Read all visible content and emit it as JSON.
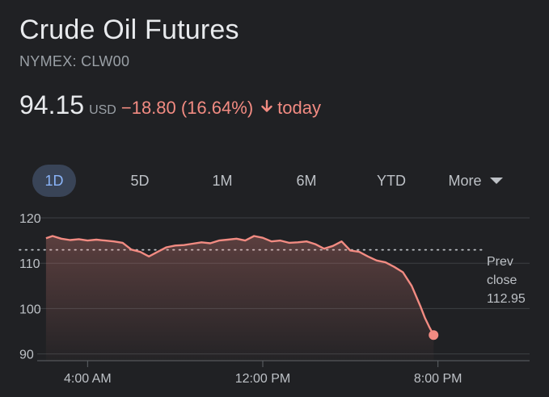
{
  "header": {
    "title": "Crude Oil Futures",
    "subtitle": "NYMEX: CLW00"
  },
  "quote": {
    "price": "94.15",
    "currency": "USD",
    "change": "−18.80 (16.64%)",
    "period": "today",
    "direction_icon": "arrow-down-icon",
    "change_color": "#f28b82"
  },
  "range_tabs": {
    "items": [
      "1D",
      "5D",
      "1M",
      "6M",
      "YTD"
    ],
    "more_label": "More",
    "active": "1D"
  },
  "prev_close": {
    "line1": "Prev",
    "line2": "close",
    "value": "112.95"
  },
  "chart_data": {
    "type": "line",
    "x_ticks": [
      "4:00 AM",
      "12:00 PM",
      "8:00 PM"
    ],
    "y_ticks": [
      "120",
      "110",
      "100",
      "90"
    ],
    "ylim": [
      88.5,
      120
    ],
    "x_range_hours": [
      0,
      24
    ],
    "x_tick_hours": [
      4,
      12,
      20
    ],
    "baseline": 112.95,
    "line_color": "#f28b82",
    "series": [
      {
        "x": [
          2.1,
          2.4,
          2.8,
          3.2,
          3.6,
          4.0,
          4.4,
          4.8,
          5.2,
          5.6,
          6.0,
          6.4,
          6.8,
          7.2,
          7.6,
          8.0,
          8.4,
          8.8,
          9.2,
          9.6,
          10.0,
          10.4,
          10.8,
          11.2,
          11.6,
          12.0,
          12.4,
          12.8,
          13.2,
          13.6,
          14.0,
          14.4,
          14.8,
          15.2,
          15.6,
          16.0,
          16.4,
          16.8,
          17.2,
          17.6,
          18.0,
          18.4,
          18.8,
          19.2,
          19.4,
          19.6,
          19.8
        ],
        "y": [
          115.5,
          116.0,
          115.4,
          115.1,
          115.3,
          115.0,
          115.2,
          115.0,
          114.8,
          114.5,
          113.0,
          112.5,
          111.5,
          112.5,
          113.5,
          113.9,
          114.0,
          114.3,
          114.6,
          114.4,
          115.0,
          115.2,
          115.4,
          115.0,
          116.0,
          115.6,
          114.8,
          115.0,
          114.5,
          114.6,
          114.8,
          114.2,
          113.2,
          113.8,
          114.8,
          112.8,
          112.5,
          111.5,
          110.6,
          110.2,
          109.2,
          108.0,
          105.0,
          100.5,
          98.0,
          96.0,
          94.15
        ]
      }
    ]
  }
}
